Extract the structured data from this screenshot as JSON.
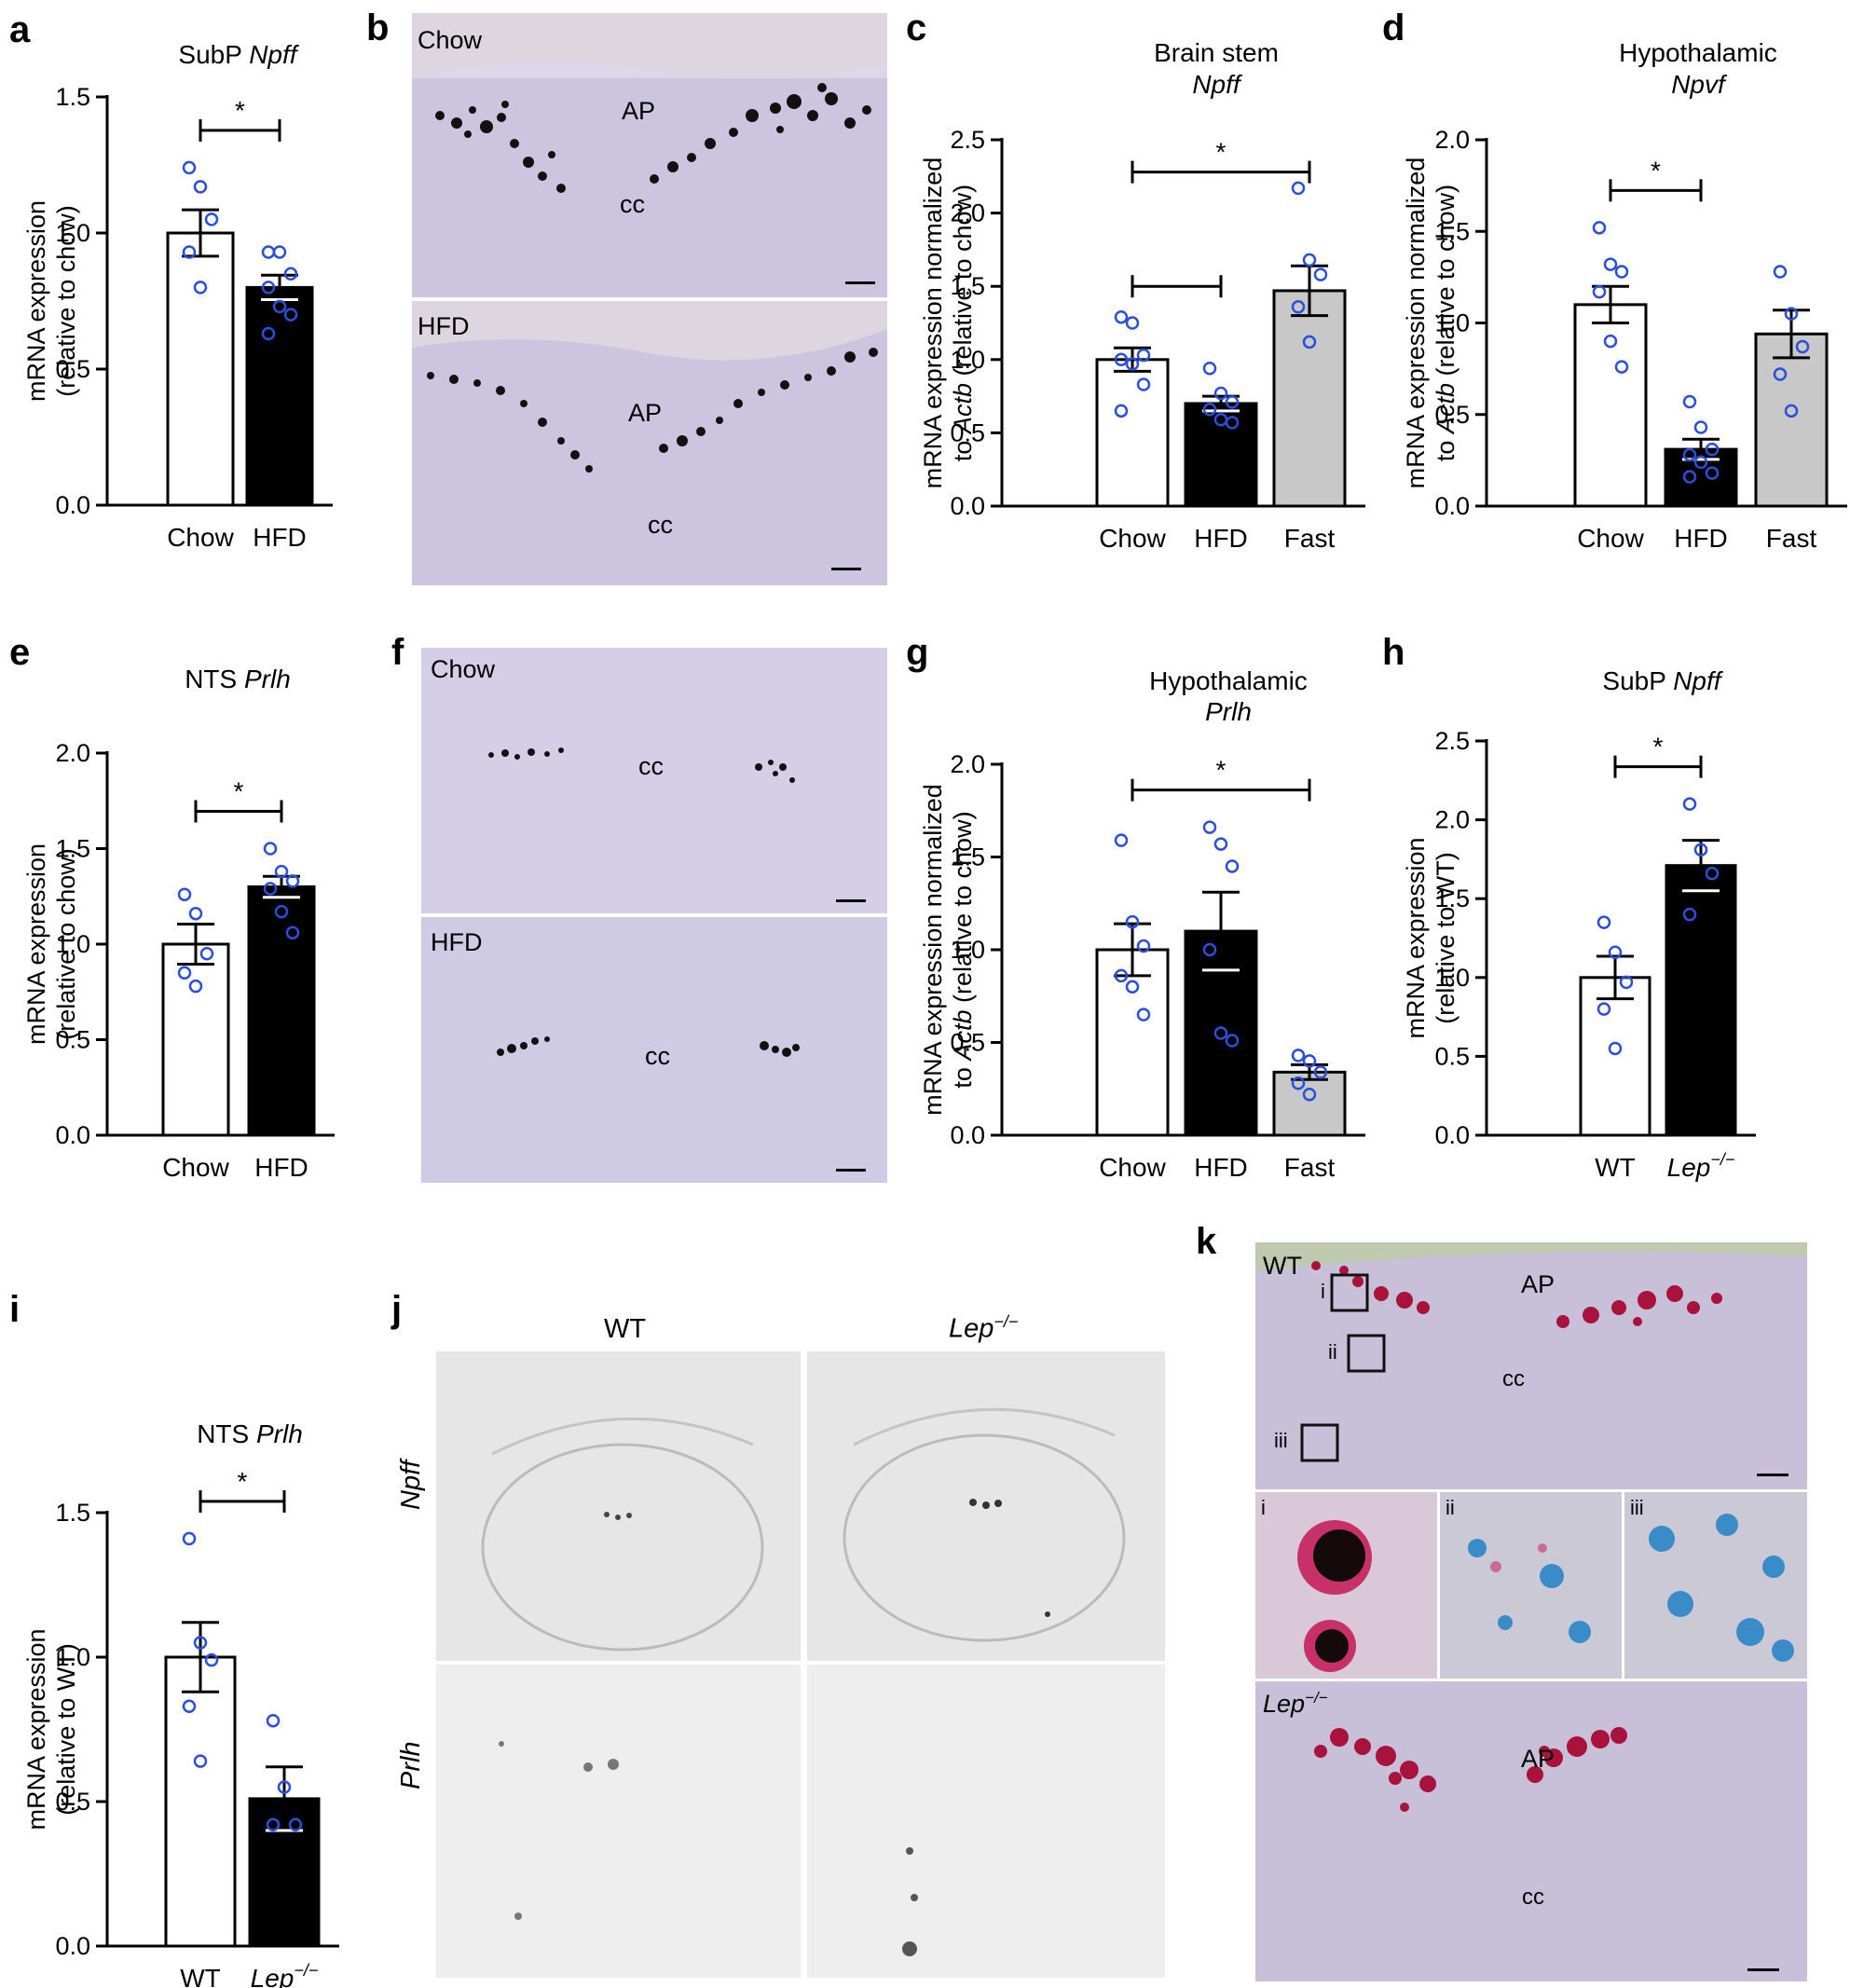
{
  "panel_labels": {
    "a": "a",
    "b": "b",
    "c": "c",
    "d": "d",
    "e": "e",
    "f": "f",
    "g": "g",
    "h": "h",
    "i": "i",
    "j": "j",
    "k": "k"
  },
  "chart_data": [
    {
      "id": "a",
      "type": "bar",
      "title": "SubP",
      "title_italic": "Npff",
      "title_line2": "",
      "ylabel": [
        "mRNA expression",
        "(relative to chow)"
      ],
      "ylim": [
        0,
        1.5
      ],
      "yticks": [
        "0.0",
        "0.5",
        "1.0",
        "1.5"
      ],
      "categories": [
        "Chow",
        "HFD"
      ],
      "values": [
        1.0,
        0.8
      ],
      "errors": [
        0.085,
        0.045
      ],
      "points": [
        [
          1.24,
          1.17,
          1.05,
          0.93,
          0.8
        ],
        [
          0.93,
          0.93,
          0.85,
          0.8,
          0.73,
          0.7,
          0.63
        ]
      ],
      "sig": [
        {
          "from": 0,
          "to": 1,
          "label": "*"
        }
      ]
    },
    {
      "id": "c",
      "type": "bar",
      "title": "Brain stem",
      "title_italic": "",
      "title_line2": "Npff",
      "ylabel": [
        "mRNA expression normalized",
        "to Actb (relative to chow)"
      ],
      "ylim": [
        0,
        2.5
      ],
      "yticks": [
        "0.0",
        "0.5",
        "1.0",
        "1.5",
        "2.0",
        "2.5"
      ],
      "categories": [
        "Chow",
        "HFD",
        "Fast"
      ],
      "values": [
        1.0,
        0.7,
        1.47
      ],
      "errors": [
        0.08,
        0.05,
        0.17
      ],
      "points": [
        [
          1.29,
          1.25,
          1.03,
          1.0,
          0.97,
          0.83,
          0.65
        ],
        [
          0.94,
          0.77,
          0.71,
          0.66,
          0.59,
          0.57
        ],
        [
          2.17,
          1.68,
          1.58,
          1.36,
          1.12
        ]
      ],
      "sig": [
        {
          "from": 0,
          "to": 2,
          "label": "*"
        },
        {
          "from": 0,
          "to": 1,
          "label": ""
        }
      ]
    },
    {
      "id": "d",
      "type": "bar",
      "title": "Hypothalamic",
      "title_italic": "",
      "title_line2": "Npvf",
      "ylabel": [
        "mRNA expression normalized",
        "to Actb (relative to chow)"
      ],
      "ylim": [
        0,
        2.0
      ],
      "yticks": [
        "0.0",
        "0.5",
        "1.0",
        "1.5",
        "2.0"
      ],
      "categories": [
        "Chow",
        "HFD",
        "Fast"
      ],
      "values": [
        1.1,
        0.31,
        0.94
      ],
      "errors": [
        0.1,
        0.055,
        0.13
      ],
      "points": [
        [
          1.52,
          1.32,
          1.28,
          1.17,
          0.9,
          0.76
        ],
        [
          0.57,
          0.43,
          0.31,
          0.28,
          0.24,
          0.18,
          0.16
        ],
        [
          1.28,
          1.05,
          0.87,
          0.72,
          0.52
        ]
      ],
      "sig": [
        {
          "from": 0,
          "to": 1,
          "label": "*"
        }
      ]
    },
    {
      "id": "e",
      "type": "bar",
      "title": "NTS",
      "title_italic": "Prlh",
      "title_line2": "",
      "ylabel": [
        "mRNA expression",
        "(relative to chow)"
      ],
      "ylim": [
        0,
        2.0
      ],
      "yticks": [
        "0.0",
        "0.5",
        "1.0",
        "1.5",
        "2.0"
      ],
      "categories": [
        "Chow",
        "HFD"
      ],
      "values": [
        1.0,
        1.3
      ],
      "errors": [
        0.105,
        0.055
      ],
      "points": [
        [
          1.26,
          1.16,
          0.95,
          0.85,
          0.78
        ],
        [
          1.5,
          1.38,
          1.33,
          1.29,
          1.17,
          1.06
        ]
      ],
      "sig": [
        {
          "from": 0,
          "to": 1,
          "label": "*"
        }
      ]
    },
    {
      "id": "g",
      "type": "bar",
      "title": "Hypothalamic",
      "title_italic": "",
      "title_line2": "Prlh",
      "ylabel": [
        "mRNA expression normalized",
        "to Actb (relative to chow)"
      ],
      "ylim": [
        0,
        2.0
      ],
      "yticks": [
        "0.0",
        "0.5",
        "1.0",
        "1.5",
        "2.0"
      ],
      "categories": [
        "Chow",
        "HFD",
        "Fast"
      ],
      "values": [
        1.0,
        1.1,
        0.34
      ],
      "errors": [
        0.14,
        0.21,
        0.04
      ],
      "points": [
        [
          1.59,
          1.15,
          1.02,
          0.86,
          0.8,
          0.65
        ],
        [
          1.66,
          1.57,
          1.45,
          1.0,
          0.55,
          0.51
        ],
        [
          0.43,
          0.4,
          0.34,
          0.28,
          0.22
        ]
      ],
      "sig": [
        {
          "from": 0,
          "to": 2,
          "label": "*"
        }
      ]
    },
    {
      "id": "h",
      "type": "bar",
      "title": "SubP",
      "title_italic": "Npff",
      "title_line2": "",
      "ylabel": [
        "mRNA expression",
        "(relative to WT)"
      ],
      "ylim": [
        0,
        2.5
      ],
      "yticks": [
        "0.0",
        "0.5",
        "1.0",
        "1.5",
        "2.0",
        "2.5"
      ],
      "categories": [
        "WT",
        "Lep"
      ],
      "cat_sup": [
        "",
        "−/−"
      ],
      "cat_italic": [
        false,
        true
      ],
      "values": [
        1.0,
        1.71
      ],
      "errors": [
        0.135,
        0.16
      ],
      "points": [
        [
          1.35,
          1.16,
          0.97,
          0.8,
          0.55
        ],
        [
          2.1,
          1.81,
          1.66,
          1.4
        ]
      ],
      "sig": [
        {
          "from": 0,
          "to": 1,
          "label": "*"
        }
      ]
    },
    {
      "id": "i",
      "type": "bar",
      "title": "NTS",
      "title_italic": "Prlh",
      "title_line2": "",
      "ylabel": [
        "mRNA expression",
        "(relative to WT)"
      ],
      "ylim": [
        0,
        1.5
      ],
      "yticks": [
        "0.0",
        "0.5",
        "1.0",
        "1.5"
      ],
      "categories": [
        "WT",
        "Lep"
      ],
      "cat_sup": [
        "",
        "−/−"
      ],
      "cat_italic": [
        false,
        true
      ],
      "values": [
        1.0,
        0.51
      ],
      "errors": [
        0.12,
        0.11
      ],
      "points": [
        [
          1.41,
          1.05,
          0.99,
          0.83,
          0.64
        ],
        [
          0.78,
          0.55,
          0.42,
          0.42
        ]
      ],
      "sig": [
        {
          "from": 0,
          "to": 1,
          "label": "*"
        }
      ]
    }
  ],
  "micrographs": {
    "b": {
      "top": "Chow",
      "bottom": "HFD",
      "ap": "AP",
      "cc": "cc"
    },
    "f": {
      "top": "Chow",
      "bottom": "HFD",
      "cc": "cc"
    },
    "j": {
      "col1": "WT",
      "col2": "Lep",
      "col2_sup": "−/−",
      "row1": "Npff",
      "row2": "Prlh"
    },
    "k": {
      "top": "WT",
      "bottom": "Lep",
      "bottom_sup": "−/−",
      "ap": "AP",
      "cc": "cc",
      "box_i": "i",
      "box_ii": "ii",
      "box_iii": "iii",
      "inset_i": "i",
      "inset_ii": "ii",
      "inset_iii": "iii"
    }
  },
  "colors": {
    "bar_white": "#ffffff",
    "bar_black": "#000000",
    "bar_grey": "#c8c8c8",
    "dot": "#2b4fd8",
    "tissue": "#c9c3df",
    "tissue_light": "#d6d1e8",
    "signal_red": "#b3123f"
  }
}
